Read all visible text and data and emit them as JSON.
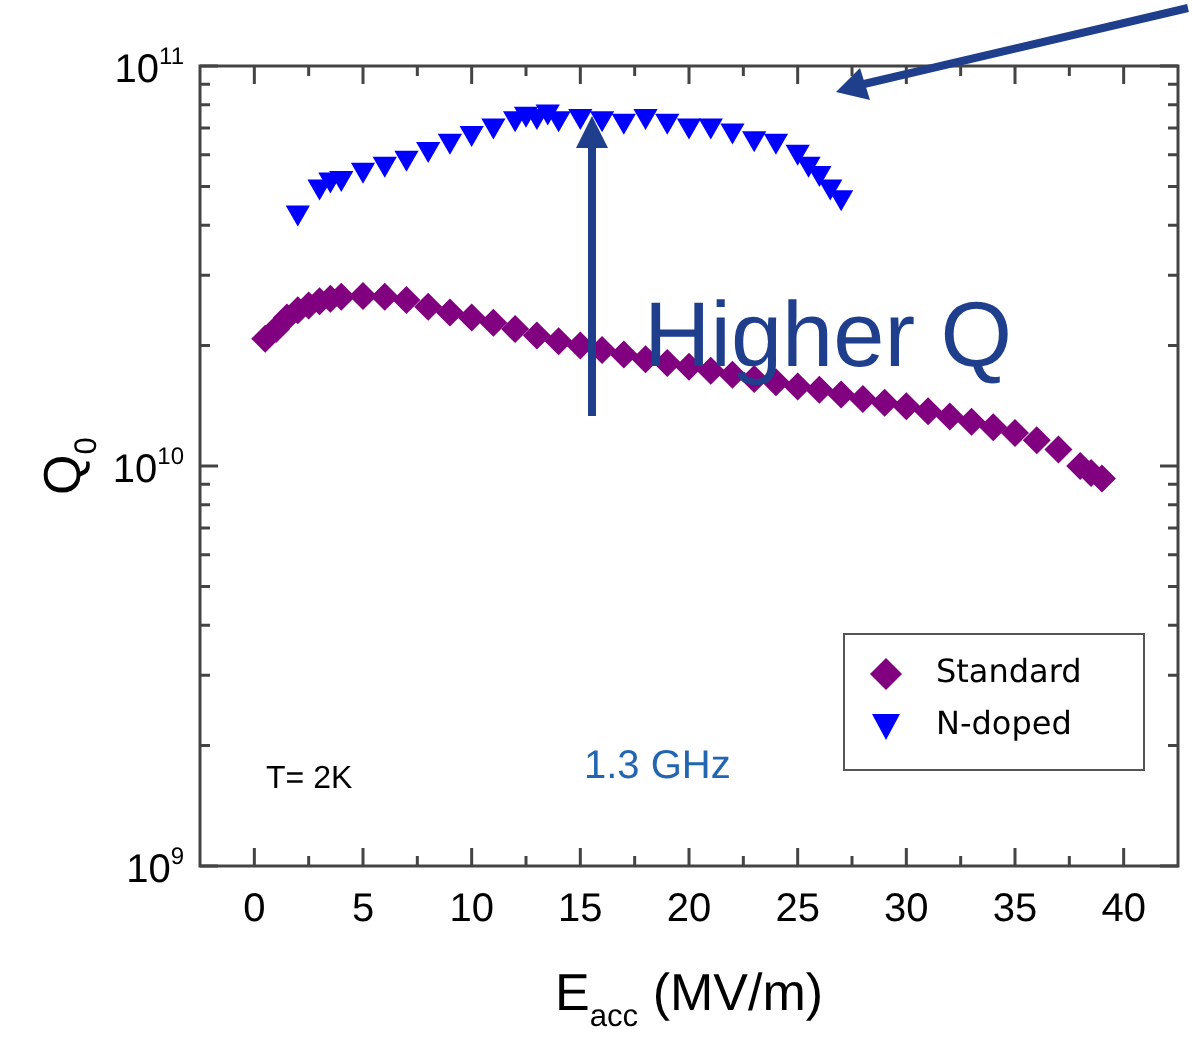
{
  "chart_data": {
    "type": "scatter",
    "xlabel": "E$_{acc}$ (MV/m)",
    "ylabel": "Q$_{0}$",
    "log": "y",
    "grid": false,
    "legend": "bottom right",
    "xlim": [
      -2.5,
      42.5
    ],
    "xticks": [
      0,
      {
        "value": 2.5,
        "label": null
      },
      5,
      {
        "value": 7.5,
        "label": null
      },
      10,
      {
        "value": 12.5,
        "label": null
      },
      15,
      {
        "value": 17.5,
        "label": null
      },
      20,
      {
        "value": 22.5,
        "label": null
      },
      25,
      {
        "value": 27.5,
        "label": null
      },
      30,
      {
        "value": 32.5,
        "label": null
      },
      35,
      {
        "value": 37.5,
        "label": null
      },
      40
    ],
    "ylim": [
      1000000000.0,
      100000000000.0
    ],
    "yticks": [
      {
        "value": 1000000000.0,
        "label": "10$^{9}$"
      },
      {
        "value": 2000000000.0,
        "label": null
      },
      {
        "value": 3000000000.0,
        "label": null
      },
      {
        "value": 4000000000.0,
        "label": null
      },
      {
        "value": 5000000000.0,
        "label": null
      },
      {
        "value": 6000000000.0,
        "label": null
      },
      {
        "value": 7000000000.0,
        "label": null
      },
      {
        "value": 8000000000.0,
        "label": null
      },
      {
        "value": 9000000000.0,
        "label": null
      },
      {
        "value": 10000000000.0,
        "label": "10$^{10}$"
      },
      {
        "value": 20000000000.0,
        "label": null
      },
      {
        "value": 30000000000.0,
        "label": null
      },
      {
        "value": 40000000000.0,
        "label": null
      },
      {
        "value": 50000000000.0,
        "label": null
      },
      {
        "value": 60000000000.0,
        "label": null
      },
      {
        "value": 70000000000.0,
        "label": null
      },
      {
        "value": 80000000000.0,
        "label": null
      },
      {
        "value": 90000000000.0,
        "label": null
      },
      {
        "value": 100000000000.0,
        "label": "10$^{11}$"
      }
    ],
    "annotations": [
      {
        "text": "Higher Q",
        "x": 15.5,
        "y": 75000000000.0
      },
      "1.3 GHz",
      "T= 2K"
    ],
    "series": [
      {
        "name": "Standard",
        "color": "#800080",
        "marker": "diamond",
        "x": [
          0.5,
          1,
          1.5,
          2,
          2.5,
          3,
          3.5,
          4,
          5,
          6,
          7,
          8,
          9,
          10,
          11,
          12,
          13,
          14,
          15,
          16,
          17,
          18,
          19,
          20,
          21,
          22,
          23,
          24,
          25,
          26,
          27,
          28,
          29,
          30,
          31,
          32,
          33,
          34,
          35,
          36,
          37,
          38,
          38.5,
          39
        ],
        "values": [
          20800000000.0,
          22000000000.0,
          23500000000.0,
          24500000000.0,
          25200000000.0,
          25800000000.0,
          26200000000.0,
          26500000000.0,
          26600000000.0,
          26500000000.0,
          26000000000.0,
          25000000000.0,
          24200000000.0,
          23500000000.0,
          22800000000.0,
          22000000000.0,
          21200000000.0,
          20500000000.0,
          20000000000.0,
          19500000000.0,
          19000000000.0,
          18500000000.0,
          18100000000.0,
          17700000000.0,
          17300000000.0,
          16900000000.0,
          16500000000.0,
          16200000000.0,
          15800000000.0,
          15500000000.0,
          15100000000.0,
          14700000000.0,
          14400000000.0,
          14100000000.0,
          13700000000.0,
          13300000000.0,
          12900000000.0,
          12500000000.0,
          12100000000.0,
          11600000000.0,
          11000000000.0,
          10000000000.0,
          9600000000.0,
          9300000000.0
        ]
      },
      {
        "name": "N-doped",
        "color": "#0000ff",
        "marker": "triangle",
        "x": [
          2,
          3,
          3.5,
          4,
          5,
          6,
          7,
          8,
          9,
          10,
          11,
          12,
          12.5,
          13,
          13.5,
          14,
          15,
          16,
          17,
          18,
          19,
          20,
          21,
          22,
          23,
          24,
          25,
          25.5,
          26,
          26.5,
          27
        ],
        "values": [
          43000000000.0,
          50000000000.0,
          52000000000.0,
          52500000000.0,
          55000000000.0,
          57000000000.0,
          59000000000.0,
          62000000000.0,
          65000000000.0,
          68000000000.0,
          71000000000.0,
          74000000000.0,
          76000000000.0,
          75000000000.0,
          77000000000.0,
          74000000000.0,
          75000000000.0,
          74000000000.0,
          73000000000.0,
          75000000000.0,
          73000000000.0,
          71000000000.0,
          71000000000.0,
          69000000000.0,
          66000000000.0,
          65000000000.0,
          61000000000.0,
          57000000000.0,
          54000000000.0,
          50000000000.0,
          47000000000.0
        ]
      }
    ]
  }
}
